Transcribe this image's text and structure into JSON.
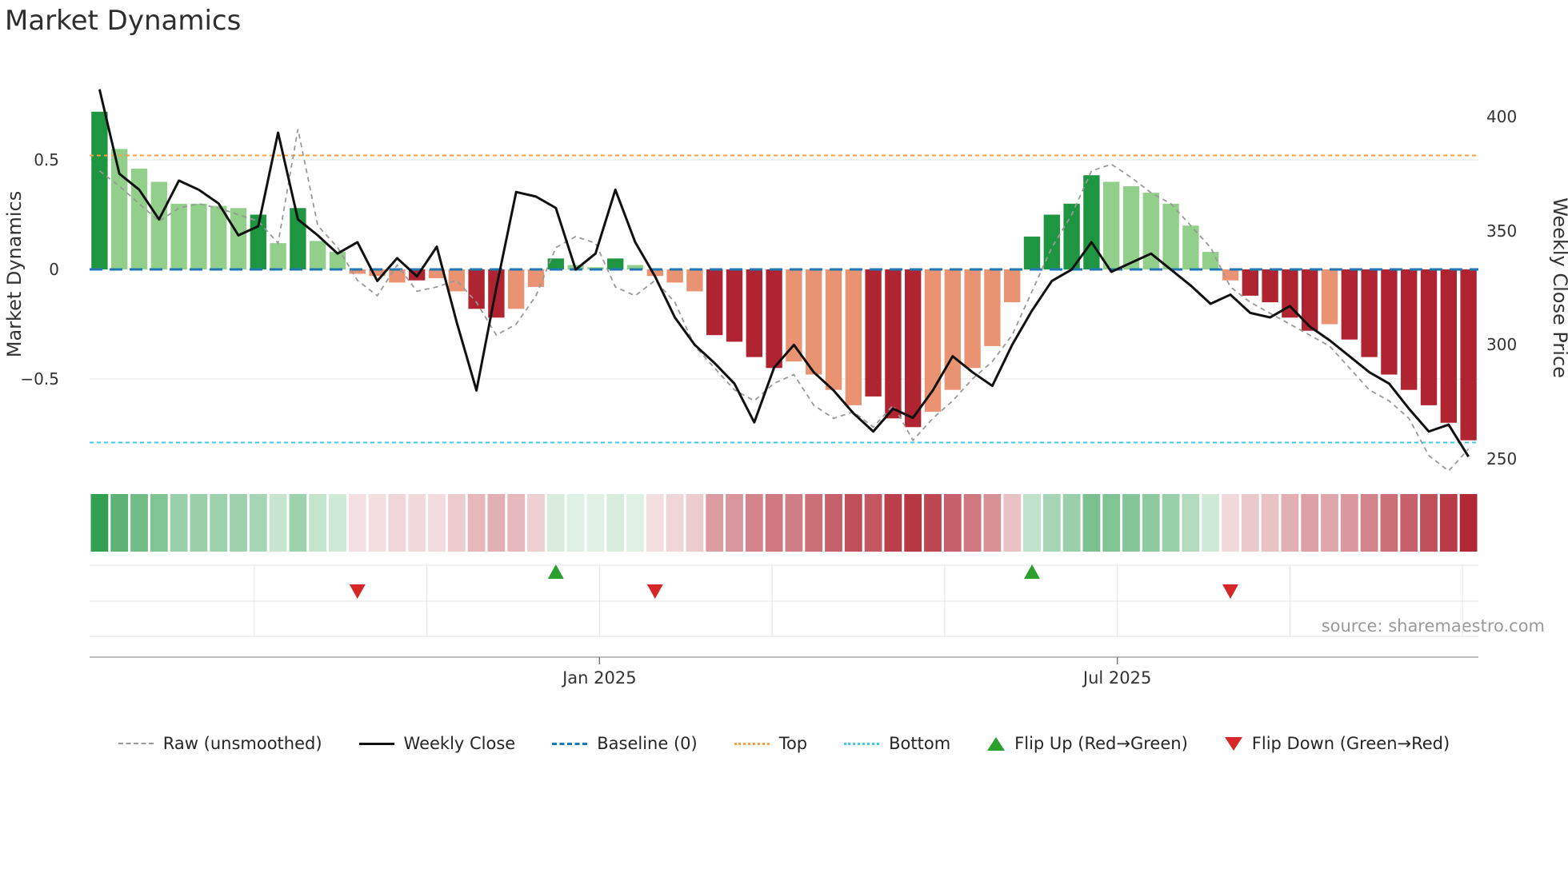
{
  "page": {
    "title": "Market Dynamics"
  },
  "axes": {
    "ylabel_left": "Market Dynamics",
    "ylabel_right": "Weekly Close Price",
    "left_ticks": [
      "0.5",
      "0",
      "−0.5"
    ],
    "right_ticks": [
      "400",
      "350",
      "300",
      "250"
    ]
  },
  "source_note": "source: sharemaestro.com",
  "legend": {
    "items": [
      {
        "label": "Raw (unsmoothed)"
      },
      {
        "label": "Weekly Close"
      },
      {
        "label": "Baseline (0)"
      },
      {
        "label": "Top"
      },
      {
        "label": "Bottom"
      },
      {
        "label": "Flip Up (Red→Green)"
      },
      {
        "label": "Flip Down (Green→Red)"
      }
    ]
  },
  "chart_data": {
    "type": "bar",
    "title": "Market Dynamics",
    "x_unit": "week",
    "x_ticks": [
      {
        "label": "Jan 2025",
        "i": 25.2
      },
      {
        "label": "Jul 2025",
        "i": 51.3
      }
    ],
    "grid_idx": [
      7.8,
      16.5,
      25.2,
      33.9,
      42.6,
      51.3,
      60.0,
      68.7
    ],
    "ylim_left": [
      -0.85,
      0.85
    ],
    "ylim_right": [
      245,
      415
    ],
    "top_level": 0.52,
    "bottom_level": -0.79,
    "baseline": 0,
    "bars": {
      "values": [
        0.72,
        0.55,
        0.46,
        0.4,
        0.3,
        0.3,
        0.29,
        0.28,
        0.25,
        0.12,
        0.28,
        0.13,
        0.08,
        -0.02,
        -0.03,
        -0.06,
        -0.05,
        -0.04,
        -0.1,
        -0.18,
        -0.22,
        -0.18,
        -0.08,
        0.05,
        0.02,
        0.01,
        0.05,
        0.02,
        -0.03,
        -0.06,
        -0.1,
        -0.3,
        -0.33,
        -0.4,
        -0.45,
        -0.42,
        -0.48,
        -0.55,
        -0.62,
        -0.58,
        -0.68,
        -0.72,
        -0.65,
        -0.55,
        -0.45,
        -0.35,
        -0.15,
        0.15,
        0.25,
        0.3,
        0.43,
        0.4,
        0.38,
        0.35,
        0.3,
        0.2,
        0.08,
        -0.05,
        -0.12,
        -0.15,
        -0.22,
        -0.28,
        -0.25,
        -0.32,
        -0.4,
        -0.48,
        -0.55,
        -0.62,
        -0.7,
        -0.78
      ],
      "shades": [
        "d",
        "l",
        "l",
        "l",
        "l",
        "l",
        "l",
        "l",
        "d",
        "l",
        "d",
        "l",
        "l",
        "l",
        "l",
        "l",
        "d",
        "l",
        "l",
        "d",
        "d",
        "l",
        "l",
        "d",
        "l",
        "l",
        "d",
        "l",
        "l",
        "l",
        "l",
        "d",
        "d",
        "d",
        "d",
        "l",
        "l",
        "l",
        "l",
        "d",
        "d",
        "d",
        "l",
        "l",
        "l",
        "l",
        "l",
        "d",
        "d",
        "d",
        "d",
        "l",
        "l",
        "l",
        "l",
        "l",
        "l",
        "l",
        "d",
        "d",
        "d",
        "d",
        "l",
        "d",
        "d",
        "d",
        "d",
        "d",
        "d",
        "d"
      ]
    },
    "raw": [
      0.45,
      0.38,
      0.3,
      0.22,
      0.28,
      0.3,
      0.28,
      0.25,
      0.22,
      0.12,
      0.64,
      0.2,
      0.1,
      -0.05,
      -0.12,
      0.02,
      -0.1,
      -0.08,
      -0.05,
      -0.15,
      -0.3,
      -0.25,
      -0.12,
      0.1,
      0.15,
      0.12,
      -0.08,
      -0.12,
      -0.05,
      -0.15,
      -0.35,
      -0.45,
      -0.55,
      -0.6,
      -0.52,
      -0.48,
      -0.62,
      -0.68,
      -0.65,
      -0.72,
      -0.62,
      -0.78,
      -0.68,
      -0.6,
      -0.5,
      -0.42,
      -0.3,
      -0.1,
      0.1,
      0.25,
      0.45,
      0.48,
      0.42,
      0.35,
      0.3,
      0.2,
      0.1,
      -0.08,
      -0.15,
      -0.2,
      -0.25,
      -0.3,
      -0.35,
      -0.45,
      -0.55,
      -0.6,
      -0.68,
      -0.85,
      -0.92,
      -0.82
    ],
    "weekly_close": [
      412,
      375,
      368,
      355,
      372,
      368,
      362,
      348,
      352,
      393,
      355,
      348,
      340,
      345,
      328,
      338,
      330,
      343,
      310,
      280,
      325,
      367,
      365,
      360,
      333,
      340,
      368,
      345,
      330,
      312,
      300,
      292,
      283,
      266,
      290,
      300,
      288,
      280,
      270,
      262,
      272,
      268,
      280,
      295,
      288,
      282,
      300,
      315,
      328,
      333,
      345,
      332,
      336,
      340,
      333,
      326,
      318,
      322,
      314,
      312,
      317,
      308,
      302,
      295,
      288,
      283,
      272,
      262,
      265,
      251
    ],
    "flip_up_bars": [
      23,
      47
    ],
    "flip_down_bars": [
      13,
      28,
      57
    ],
    "colors": {
      "green_dark": "#1e9641",
      "green_light": "#92cf8a",
      "red_dark": "#b02330",
      "red_light": "#e99372",
      "close": "#111111",
      "raw": "#999999",
      "baseline": "#1f77b4",
      "top": "#ff9d45",
      "bottom": "#3fc8f0",
      "flip_up": "#2ca02c",
      "flip_down": "#d62728"
    }
  }
}
